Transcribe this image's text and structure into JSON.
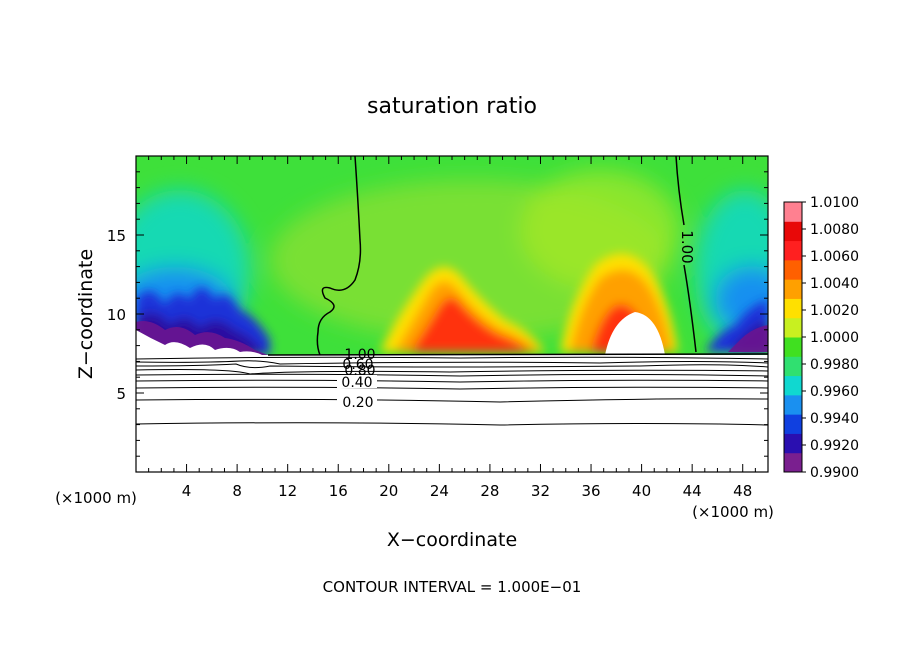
{
  "chart_data": {
    "type": "heatmap",
    "title": "saturation ratio",
    "xlabel": "X−coordinate",
    "ylabel": "Z−coordinate",
    "xunit_left": "(×1000 m)",
    "xunit_right": "(×1000 m)",
    "xlim": [
      0,
      50
    ],
    "ylim": [
      0,
      20
    ],
    "xticks": [
      4,
      8,
      12,
      16,
      20,
      24,
      28,
      32,
      36,
      40,
      44,
      48
    ],
    "yticks": [
      5,
      10,
      15
    ],
    "colorbar": {
      "labels": [
        "1.0100",
        "1.0080",
        "1.0060",
        "1.0040",
        "1.0020",
        "1.0000",
        "0.9980",
        "0.9960",
        "0.9940",
        "0.9920",
        "0.9900"
      ],
      "min": 0.99,
      "max": 1.01,
      "colors": [
        "#7a1f8f",
        "#2a0fb0",
        "#1040e0",
        "#1a90f0",
        "#10d8d0",
        "#30e070",
        "#40e020",
        "#c8f020",
        "#ffe000",
        "#ffa000",
        "#ff6000",
        "#ff2020",
        "#e80808",
        "#ff8090"
      ]
    },
    "contour_labels": [
      "1.00",
      "1.00",
      "0.60",
      "0.80",
      "0.40",
      "0.20"
    ],
    "contour_interval_text": "CONTOUR INTERVAL = 1.000E−01"
  }
}
